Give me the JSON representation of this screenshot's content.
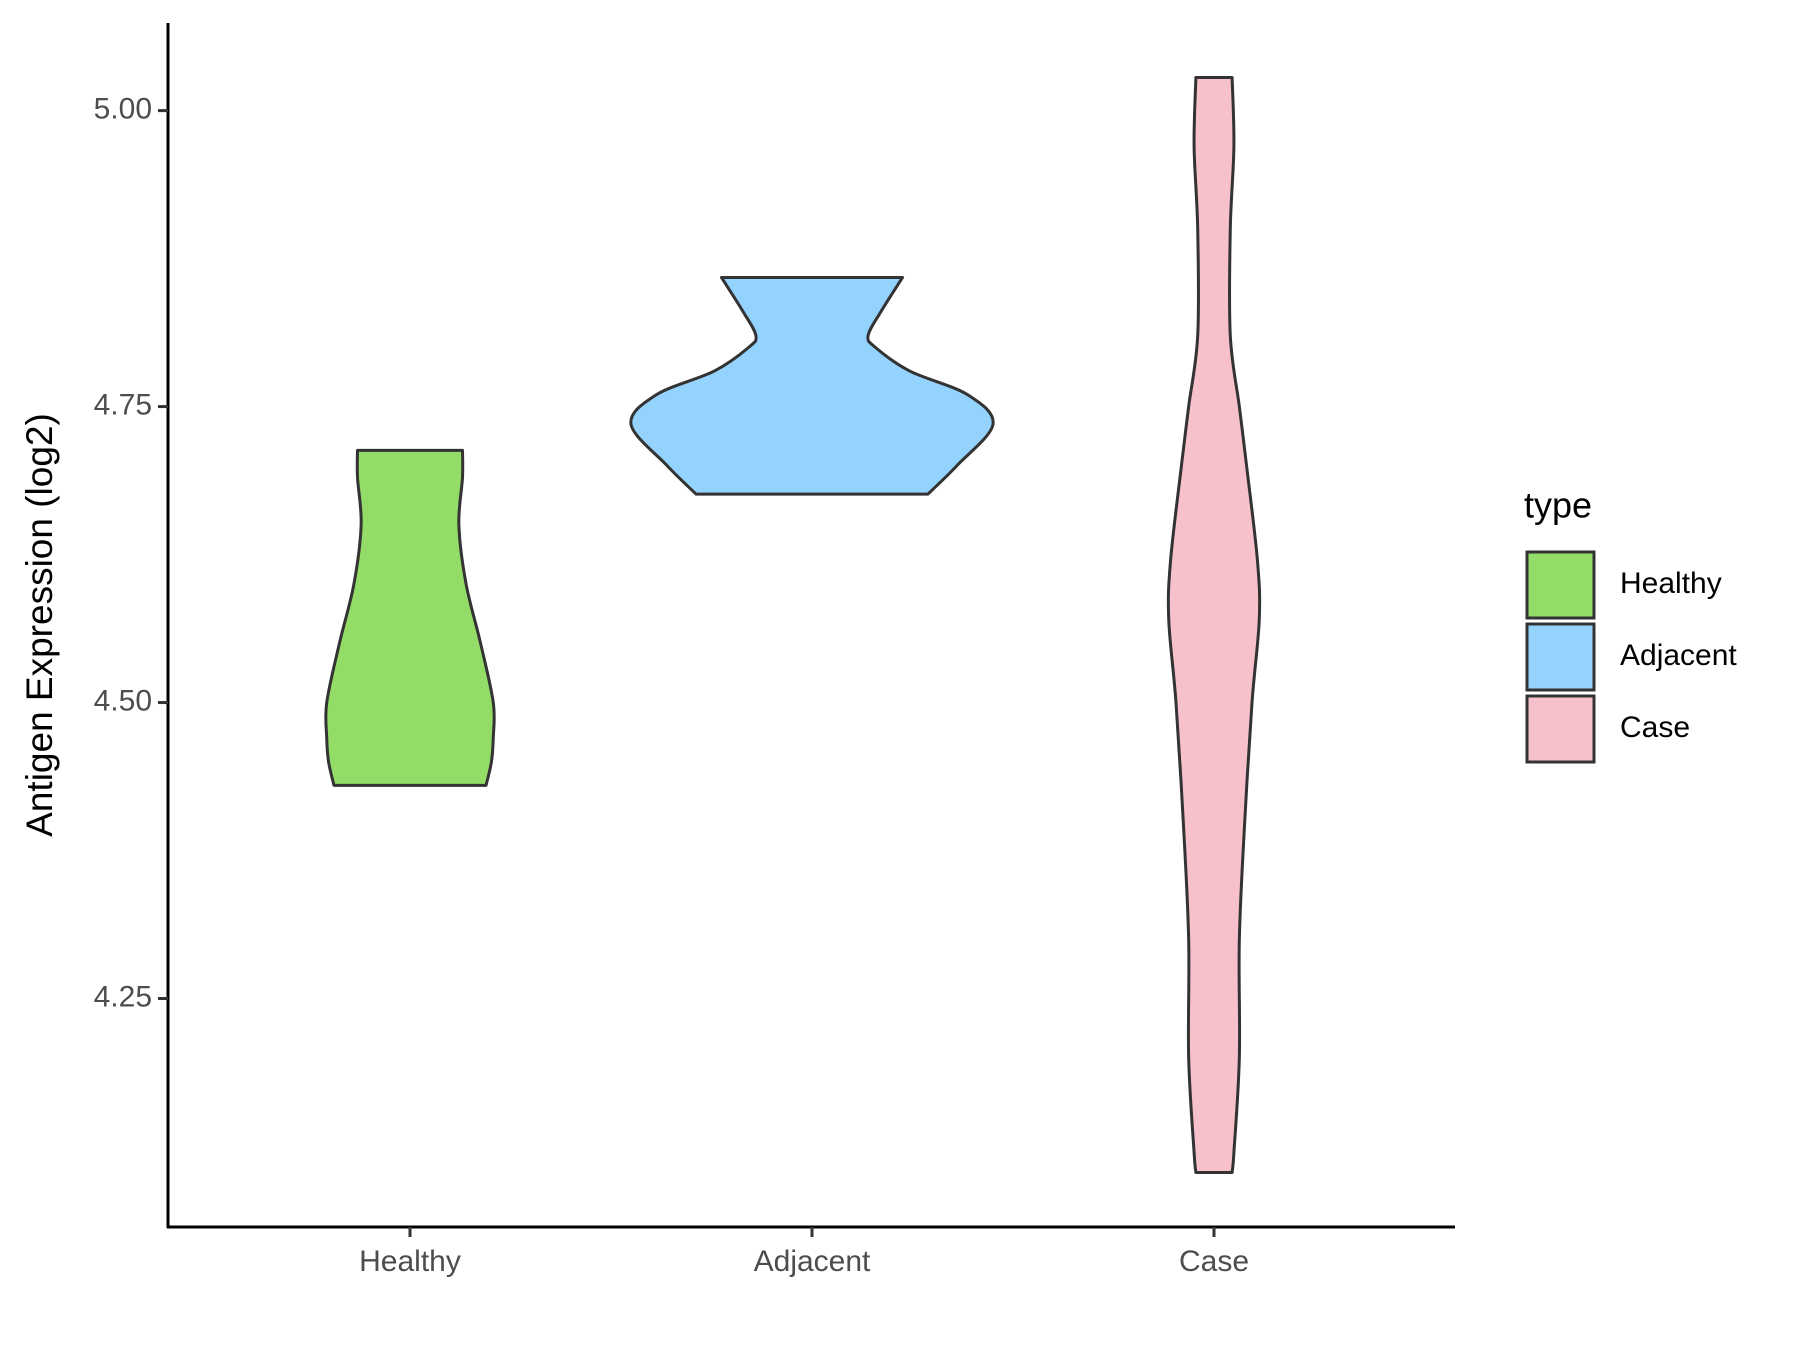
{
  "chart_data": {
    "type": "violin",
    "ylabel": "Antigen Expression (log2)",
    "categories": [
      "Healthy",
      "Adjacent",
      "Case"
    ],
    "legend_title": "type",
    "legend": "right",
    "ylim": [
      4.057,
      5.074
    ],
    "yticks": [
      4.25,
      {
        "value": 4.5,
        "label": "4.50"
      },
      4.75,
      {
        "value": 5.0,
        "label": "5.00"
      }
    ],
    "series": [
      {
        "name": "Healthy",
        "color": "#93dc68",
        "y": [
          4.43,
          4.45,
          4.47,
          4.5,
          4.55,
          4.6,
          4.65,
          4.69,
          4.713
        ],
        "density": [
          0.42,
          0.45,
          0.46,
          0.46,
          0.39,
          0.31,
          0.27,
          0.29,
          0.29
        ]
      },
      {
        "name": "Adjacent",
        "color": "#93d3fe",
        "y": [
          4.676,
          4.7,
          4.735,
          4.76,
          4.78,
          4.8,
          4.81,
          4.83,
          4.859
        ],
        "density": [
          0.64,
          0.8,
          1.0,
          0.86,
          0.54,
          0.35,
          0.31,
          0.38,
          0.5
        ]
      },
      {
        "name": "Case",
        "color": "#f7c1cb",
        "y": [
          4.103,
          4.12,
          4.2,
          4.3,
          4.4,
          4.5,
          4.57,
          4.62,
          4.7,
          4.75,
          4.81,
          4.9,
          4.97,
          5.028
        ],
        "density": [
          0.1,
          0.11,
          0.14,
          0.14,
          0.17,
          0.21,
          0.25,
          0.24,
          0.18,
          0.14,
          0.09,
          0.09,
          0.11,
          0.1
        ]
      }
    ]
  }
}
